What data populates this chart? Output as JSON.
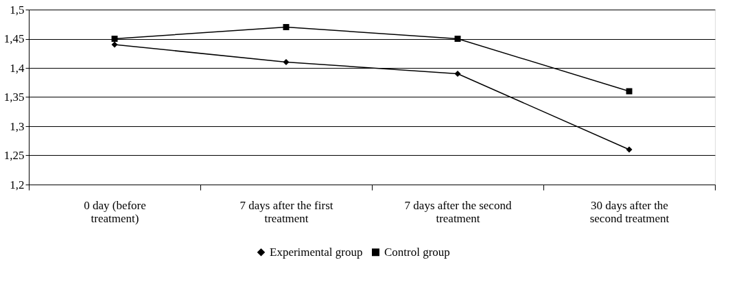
{
  "chart_data": {
    "type": "line",
    "categories": [
      "0 day (before treatment)",
      "7 days after the first treatment",
      "7 days after the second treatment",
      "30 days after the second treatment"
    ],
    "series": [
      {
        "name": "Experimental group",
        "color": "#000000",
        "marker": "diamond",
        "values": [
          1.44,
          1.41,
          1.39,
          1.26
        ]
      },
      {
        "name": "Control group",
        "color": "#000000",
        "marker": "square",
        "values": [
          1.45,
          1.47,
          1.45,
          1.36
        ]
      }
    ],
    "ylim": [
      1.2,
      1.5
    ],
    "yticks": [
      {
        "value": 1.2,
        "label": "1,2"
      },
      {
        "value": 1.25,
        "label": "1,25"
      },
      {
        "value": 1.3,
        "label": "1,3"
      },
      {
        "value": 1.35,
        "label": "1,35"
      },
      {
        "value": 1.4,
        "label": "1,4"
      },
      {
        "value": 1.45,
        "label": "1,45"
      },
      {
        "value": 1.5,
        "label": "1,5"
      }
    ],
    "grid": "y",
    "legend": "bottom",
    "line_style": "solid"
  }
}
